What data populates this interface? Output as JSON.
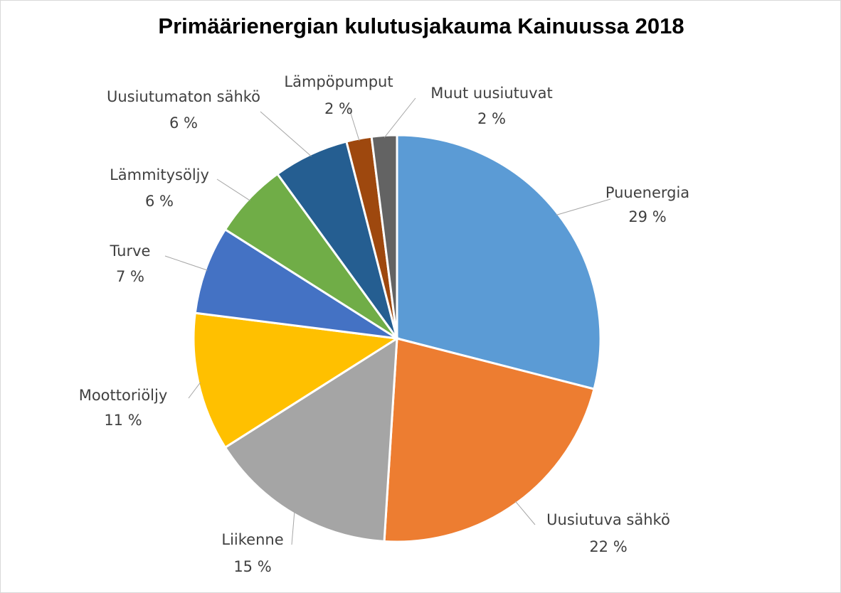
{
  "chart_data": {
    "type": "pie",
    "title": "Primäärienergian kulutusjakauma Kainuussa 2018",
    "slices": [
      {
        "name": "Puuenergia",
        "value": 29,
        "label": "29 %",
        "color": "#5B9BD5"
      },
      {
        "name": "Uusiutuva sähkö",
        "value": 22,
        "label": "22 %",
        "color": "#ED7D31"
      },
      {
        "name": "Liikenne",
        "value": 15,
        "label": "15 %",
        "color": "#A5A5A5"
      },
      {
        "name": "Moottoriöljy",
        "value": 11,
        "label": "11 %",
        "color": "#FFC000"
      },
      {
        "name": "Turve",
        "value": 7,
        "label": "7 %",
        "color": "#4472C4"
      },
      {
        "name": "Lämmitysöljy",
        "value": 6,
        "label": "6 %",
        "color": "#70AD47"
      },
      {
        "name": "Uusiutumaton sähkö",
        "value": 6,
        "label": "6 %",
        "color": "#255E91"
      },
      {
        "name": "Lämpöpumput",
        "value": 2,
        "label": "2 %",
        "color": "#9E480E"
      },
      {
        "name": "Muut uusiutuvat",
        "value": 2,
        "label": "2 %",
        "color": "#636363"
      }
    ]
  }
}
